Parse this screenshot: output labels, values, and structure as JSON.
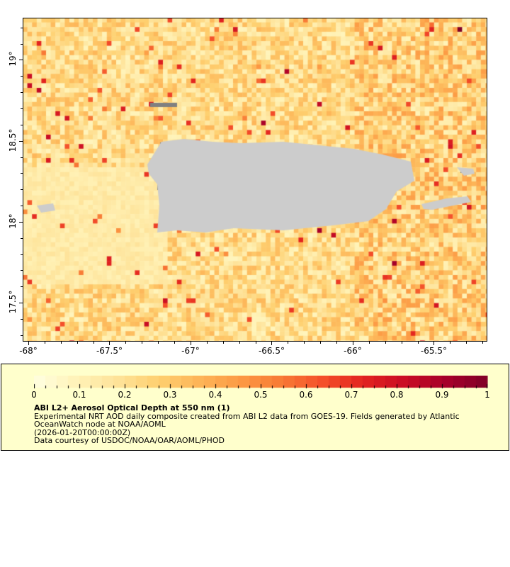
{
  "map": {
    "lon_range": [
      -68.035,
      -65.17
    ],
    "lat_range": [
      17.26,
      19.26
    ],
    "lat_ticks": [
      {
        "value": 19,
        "label": "19°"
      },
      {
        "value": 18.5,
        "label": "18.5°"
      },
      {
        "value": 18,
        "label": "18°"
      },
      {
        "value": 17.5,
        "label": "17.5°"
      }
    ],
    "lon_ticks": [
      {
        "value": -68,
        "label": "-68°"
      },
      {
        "value": -67.5,
        "label": "-67.5°"
      },
      {
        "value": -67,
        "label": "-67°"
      },
      {
        "value": -66.5,
        "label": "-66.5°"
      },
      {
        "value": -66,
        "label": "-66°"
      },
      {
        "value": -65.5,
        "label": "-65.5°"
      }
    ],
    "land_color": "#cccccc",
    "nodata_color": "#808080"
  },
  "legend": {
    "colorbar_range": [
      0,
      1
    ],
    "colorbar_labels": [
      "0",
      "0.1",
      "0.2",
      "0.3",
      "0.4",
      "0.5",
      "0.6",
      "0.7",
      "0.8",
      "0.9",
      "1"
    ],
    "colormap": [
      "#ffffe0",
      "#fff3b8",
      "#fee39a",
      "#fed070",
      "#fdb558",
      "#fc9a44",
      "#f87a35",
      "#f4502a",
      "#e2231f",
      "#c90d24",
      "#a6002a",
      "#800026"
    ],
    "title": "ABI L2+ Aerosol Optical Depth at 550 nm (1)",
    "description_1": "Experimental NRT AOD daily composite created from ABI L2 data from GOES-19. Fields generated by Atlantic",
    "description_2": "OceanWatch node at NOAA/AOML",
    "time": "(2026-01-20T00:00:00Z)",
    "credit": "Data courtesy of USDOC/NOAA/OAR/AOML/PHOD"
  }
}
